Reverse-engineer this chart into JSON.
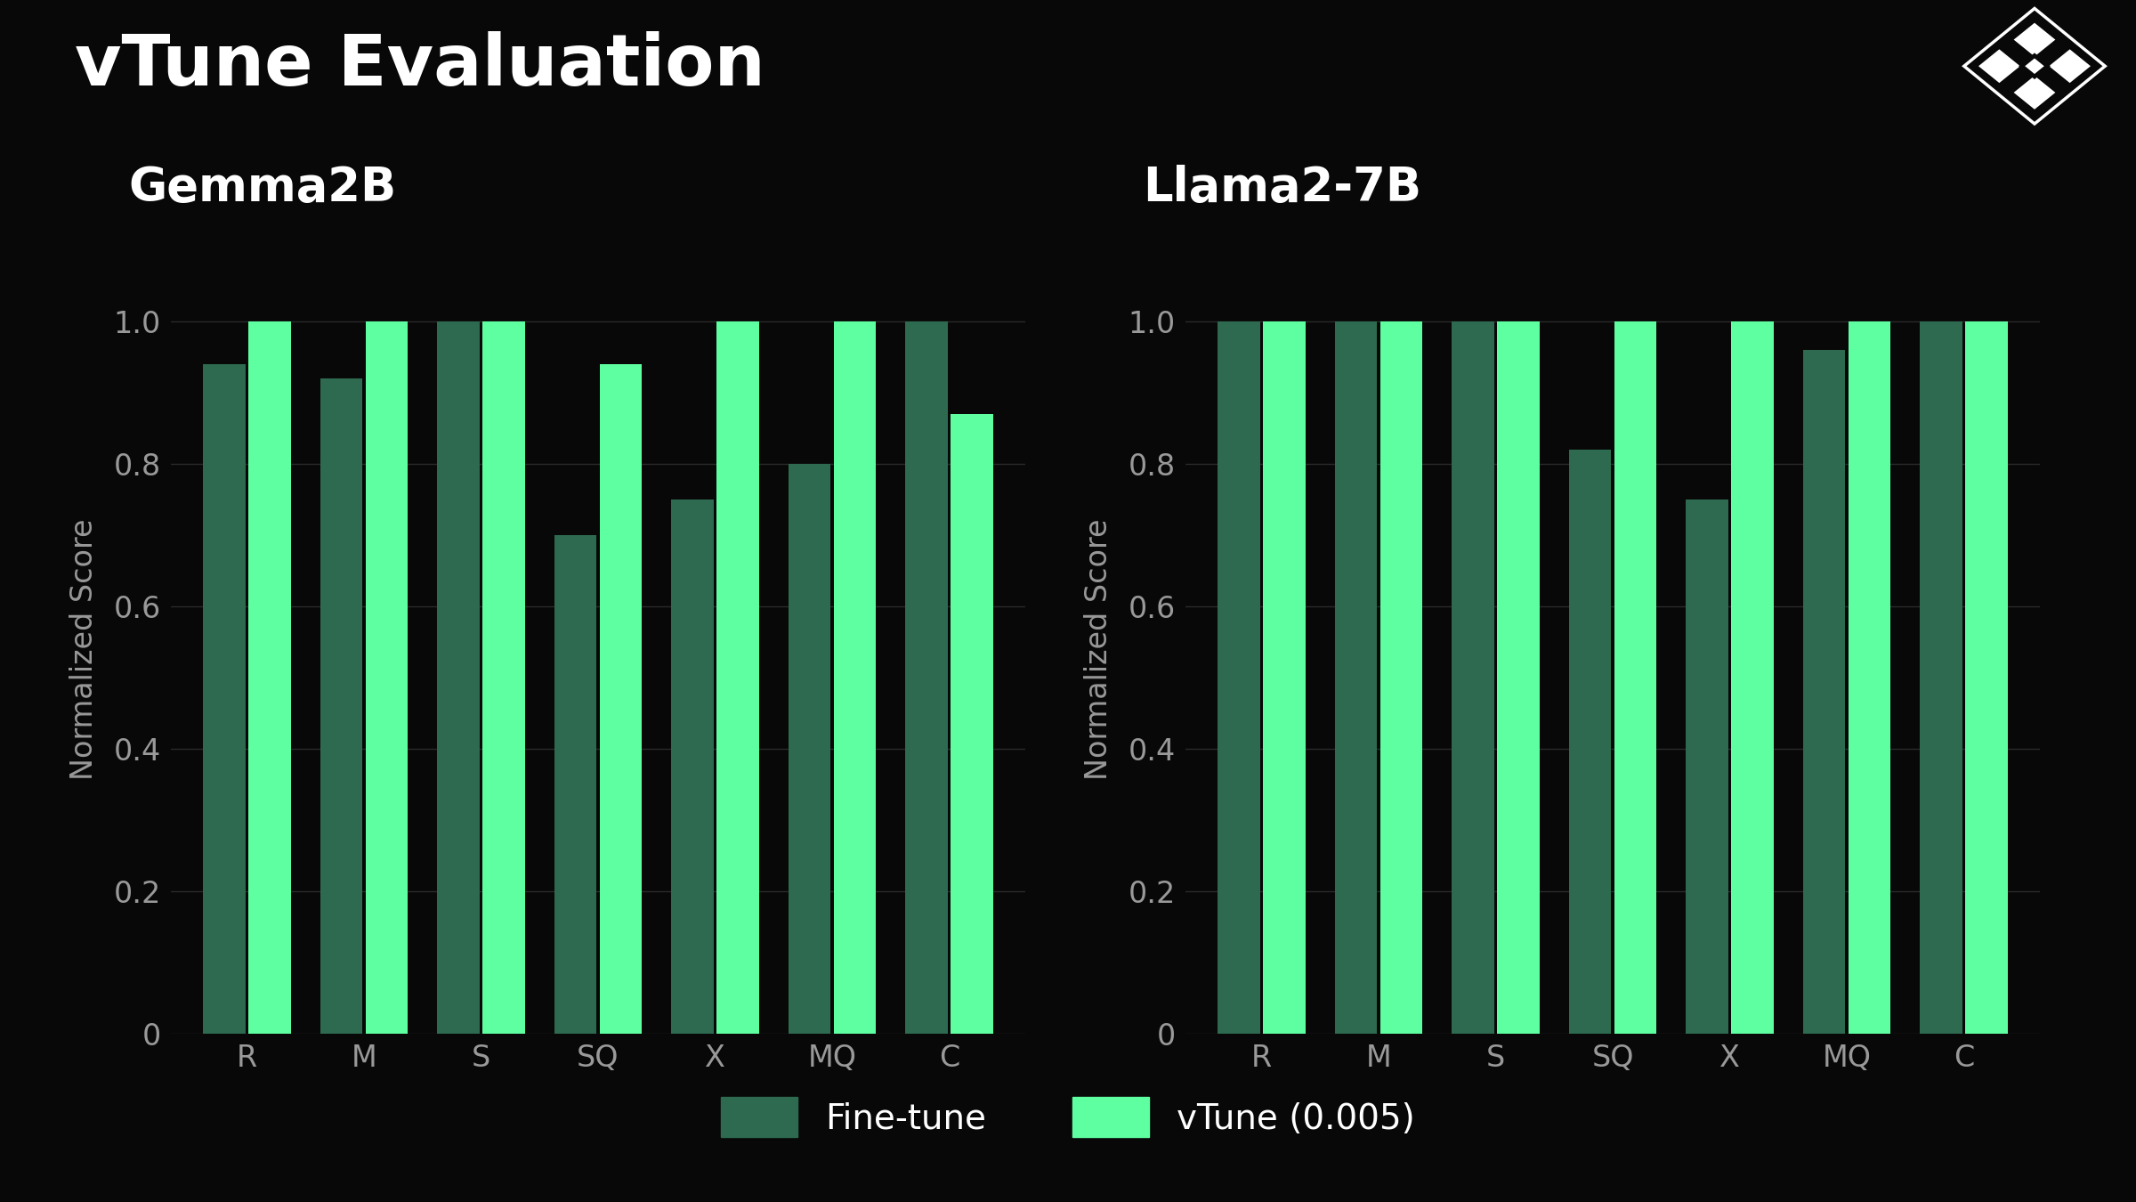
{
  "background_color": "#080808",
  "title": "vTune Evaluation",
  "title_color": "#ffffff",
  "title_fontsize": 58,
  "subtitle_line_color": "#666666",
  "chart1_title": "Gemma2B",
  "chart2_title": "Llama2-7B",
  "subtitle_fontsize": 38,
  "categories": [
    "R",
    "M",
    "S",
    "SQ",
    "X",
    "MQ",
    "C"
  ],
  "gemma2b_finetune": [
    0.94,
    0.92,
    1.0,
    0.7,
    0.75,
    0.8,
    1.0
  ],
  "gemma2b_vtune": [
    1.0,
    1.0,
    1.0,
    0.94,
    1.0,
    1.0,
    0.87
  ],
  "llama27b_finetune": [
    1.0,
    1.0,
    1.0,
    0.82,
    0.75,
    0.96,
    1.0
  ],
  "llama27b_vtune": [
    1.0,
    1.0,
    1.0,
    1.0,
    1.0,
    1.0,
    1.0
  ],
  "finetune_color": "#2d6a4f",
  "vtune_color": "#5effa0",
  "ylabel": "Normalized Score",
  "ylim": [
    0,
    1.08
  ],
  "yticks": [
    0,
    0.2,
    0.4,
    0.6,
    0.8,
    1.0
  ],
  "grid_color": "#2a2a2a",
  "tick_color": "#999999",
  "legend_finetune": "Fine-tune",
  "legend_vtune": "vTune (0.005)",
  "axis_label_fontsize": 24,
  "tick_fontsize": 24,
  "legend_fontsize": 28
}
